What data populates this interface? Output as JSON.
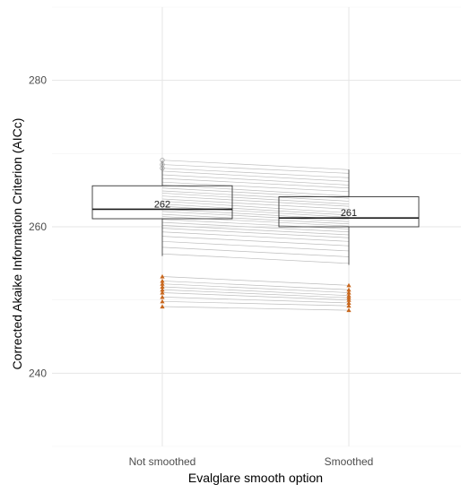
{
  "chart_data": {
    "type": "boxplot",
    "title": "",
    "xlabel": "Evalglare smooth option",
    "ylabel": "Corrected Akaike Information Criterion (AICc)",
    "categories": [
      "Not smoothed",
      "Smoothed"
    ],
    "ylim": [
      230,
      290
    ],
    "y_ticks": [
      240,
      260,
      280
    ],
    "y_tick_labels": [
      "240",
      "260",
      "280"
    ],
    "grid": true,
    "boxes": [
      {
        "category": "Not smoothed",
        "whisker_low": 256,
        "q1": 261.1,
        "median": 262.4,
        "q3": 265.6,
        "whisker_high": 269,
        "median_label": "262"
      },
      {
        "category": "Smoothed",
        "whisker_low": 254.8,
        "q1": 260.0,
        "median": 261.2,
        "q3": 264.1,
        "whisker_high": 267.8,
        "median_label": "261"
      }
    ],
    "paired_lines": {
      "color": "#bdbdbd",
      "pairs": [
        [
          269.1,
          267.8
        ],
        [
          268.5,
          267.3
        ],
        [
          268.0,
          266.7
        ],
        [
          267.6,
          266.2
        ],
        [
          267.1,
          265.7
        ],
        [
          266.6,
          265.3
        ],
        [
          266.1,
          264.8
        ],
        [
          265.7,
          264.2
        ],
        [
          265.3,
          263.9
        ],
        [
          264.9,
          263.5
        ],
        [
          264.6,
          263.1
        ],
        [
          264.2,
          262.8
        ],
        [
          263.8,
          262.4
        ],
        [
          263.5,
          261.9
        ],
        [
          263.1,
          261.6
        ],
        [
          262.8,
          261.3
        ],
        [
          262.4,
          261.0
        ],
        [
          262.1,
          260.7
        ],
        [
          261.7,
          260.4
        ],
        [
          261.4,
          260.1
        ],
        [
          261.0,
          259.7
        ],
        [
          260.6,
          259.3
        ],
        [
          260.2,
          258.9
        ],
        [
          259.8,
          258.5
        ],
        [
          259.3,
          258.0
        ],
        [
          258.7,
          257.4
        ],
        [
          258.0,
          256.7
        ],
        [
          257.2,
          255.9
        ],
        [
          256.3,
          255.0
        ]
      ]
    },
    "outlier_lines": {
      "color": "#bdbdbd",
      "marker_color": "#c8671e",
      "marker": "triangle",
      "pairs": [
        [
          253.2,
          252.0
        ],
        [
          252.6,
          251.4
        ],
        [
          252.2,
          251.0
        ],
        [
          251.8,
          250.6
        ],
        [
          251.4,
          250.3
        ],
        [
          251.0,
          250.0
        ],
        [
          250.4,
          249.6
        ],
        [
          249.8,
          249.2
        ],
        [
          249.1,
          248.6
        ]
      ]
    },
    "hollow_points": {
      "category": "Not smoothed",
      "marker": "circle-open",
      "color": "#9e9e9e",
      "values": [
        269.1,
        268.5,
        268.0
      ]
    }
  }
}
